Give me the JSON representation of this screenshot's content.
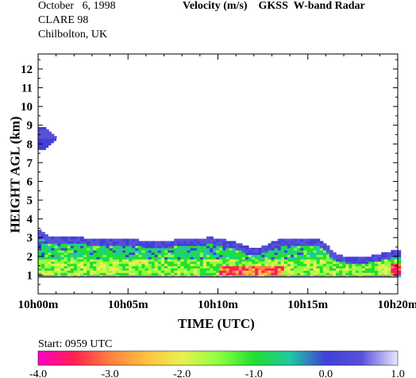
{
  "header": {
    "date": "October   6, 1998",
    "campaign": "CLARE 98",
    "location": "Chilbolton, UK",
    "title": "Velocity (m/s)    GKSS  W-band Radar"
  },
  "start_label": "Start: 0959 UTC",
  "chart_data": {
    "type": "heatmap",
    "title": "Velocity (m/s)    GKSS  W-band Radar",
    "xlabel": "TIME (UTC)",
    "ylabel": "HEIGHT AGL (km)",
    "x_ticks": [
      "10h00m",
      "10h05m",
      "10h10m",
      "10h15m",
      "10h20m"
    ],
    "x_range_min": [
      0,
      20
    ],
    "y_ticks": [
      "1",
      "2",
      "3",
      "4",
      "5",
      "6",
      "7",
      "8",
      "9",
      "10",
      "11",
      "12"
    ],
    "y_range_km": [
      0,
      12.8
    ],
    "colorbar": {
      "label": "Velocity (m/s)",
      "range": [
        -4.0,
        1.0
      ],
      "ticks": [
        "-4.0",
        "-3.0",
        "-2.0",
        "-1.0",
        "0.0",
        "1.0"
      ]
    },
    "cloud_layer_top_km": [
      [
        0.0,
        3.4
      ],
      [
        0.5,
        3.05
      ],
      [
        1.5,
        3.0
      ],
      [
        3.0,
        2.9
      ],
      [
        5.0,
        2.85
      ],
      [
        6.5,
        2.75
      ],
      [
        8.0,
        2.85
      ],
      [
        9.5,
        2.95
      ],
      [
        10.5,
        2.8
      ],
      [
        12.0,
        2.35
      ],
      [
        13.5,
        2.9
      ],
      [
        15.5,
        2.9
      ],
      [
        16.0,
        2.5
      ],
      [
        16.5,
        2.0
      ],
      [
        18.0,
        1.9
      ],
      [
        20.0,
        2.3
      ]
    ],
    "cloud_layer_base_km": 0.9,
    "upper_cloud": {
      "time_min": [
        0.0,
        1.0
      ],
      "height_km": [
        7.7,
        8.8
      ],
      "velocity": 0.0
    },
    "velocity_features": [
      {
        "time_min": [
          0,
          20
        ],
        "height_km": [
          2.6,
          3.0
        ],
        "velocity": 0.0
      },
      {
        "time_min": [
          0,
          15
        ],
        "height_km": [
          1.8,
          2.6
        ],
        "velocity": -0.8
      },
      {
        "time_min": [
          0,
          20
        ],
        "height_km": [
          1.0,
          1.8
        ],
        "velocity": -1.5
      },
      {
        "time_min": [
          10,
          13.5
        ],
        "height_km": [
          1.0,
          1.4
        ],
        "velocity": -3.0
      },
      {
        "time_min": [
          19.5,
          20
        ],
        "height_km": [
          1.0,
          1.6
        ],
        "velocity": -3.2
      }
    ]
  },
  "colors": {
    "scale": [
      "#ff00c8",
      "#ff2050",
      "#ff8040",
      "#ffc040",
      "#e8f050",
      "#90ff40",
      "#20e030",
      "#20c8a0",
      "#4040d8",
      "#5a50d8",
      "#e8e8ff"
    ],
    "baseline": "#6a1a6a"
  }
}
